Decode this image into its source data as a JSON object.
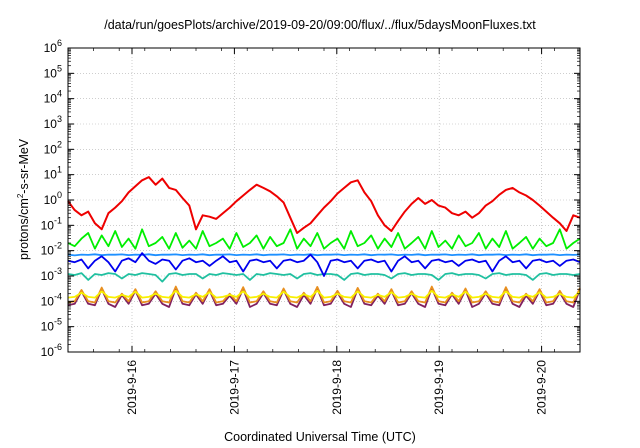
{
  "chart_data": {
    "type": "line",
    "title": "/data/run/goesPlots/archive/2019-09-20/09:00/flux/../flux/5daysMoonFluxes.txt",
    "xlabel": "Coordinated Universal Time (UTC)",
    "ylabel_parts": [
      "protons/cm",
      "2",
      "-s-sr-MeV"
    ],
    "yscale": "log",
    "ylim_exp": [
      -6,
      6
    ],
    "ytick_exponents": [
      -6,
      -5,
      -4,
      -3,
      -2,
      -1,
      0,
      1,
      2,
      3,
      4,
      5,
      6
    ],
    "xlim_days": [
      "2019-09-15 09:00",
      "2019-09-20 09:00"
    ],
    "xticks": [
      "2019-9-16",
      "2019-9-17",
      "2019-9-18",
      "2019-9-19",
      "2019-9-20"
    ],
    "grid": true,
    "colors": {
      "red": "#ee0000",
      "green": "#00ee00",
      "blue": "#0000ee",
      "dodger": "#1e90ff",
      "teal": "#20c0a0",
      "yellow": "#f8f000",
      "orange": "#e89020",
      "purple": "#802060"
    },
    "series": [
      {
        "color": "red",
        "values": [
          0.9,
          0.4,
          0.25,
          0.35,
          0.12,
          0.07,
          0.3,
          0.5,
          0.9,
          2.0,
          3.5,
          6,
          8,
          4,
          7,
          3,
          2.5,
          1.2,
          0.6,
          0.07,
          0.25,
          0.22,
          0.18,
          0.3,
          0.5,
          0.9,
          1.5,
          2.5,
          4,
          3,
          2.2,
          1.4,
          0.8,
          0.2,
          0.05,
          0.08,
          0.12,
          0.25,
          0.5,
          0.9,
          1.8,
          3,
          5,
          6,
          2,
          0.9,
          0.25,
          0.1,
          0.06,
          0.15,
          0.35,
          0.7,
          1.2,
          0.7,
          1.0,
          0.6,
          0.5,
          0.3,
          0.25,
          0.35,
          0.2,
          0.3,
          0.6,
          0.9,
          1.6,
          2.5,
          3,
          2.0,
          1.5,
          1.0,
          0.6,
          0.35,
          0.2,
          0.12,
          0.06,
          0.25,
          0.2
        ],
        "min": 0.04,
        "max": 10
      },
      {
        "color": "green",
        "values": [
          0.02,
          0.015,
          0.03,
          0.05,
          0.012,
          0.04,
          0.015,
          0.06,
          0.014,
          0.03,
          0.012,
          0.07,
          0.015,
          0.02,
          0.035,
          0.012,
          0.05,
          0.013,
          0.025,
          0.012,
          0.06,
          0.015,
          0.02,
          0.03,
          0.012,
          0.05,
          0.014,
          0.02,
          0.04,
          0.012,
          0.035,
          0.015,
          0.02,
          0.07,
          0.012,
          0.03,
          0.015,
          0.05,
          0.012,
          0.02,
          0.03,
          0.012,
          0.06,
          0.015,
          0.02,
          0.04,
          0.012,
          0.03,
          0.014,
          0.05,
          0.012,
          0.02,
          0.035,
          0.012,
          0.06,
          0.014,
          0.025,
          0.012,
          0.04,
          0.015,
          0.02,
          0.05,
          0.012,
          0.03,
          0.014,
          0.06,
          0.012,
          0.02,
          0.035,
          0.012,
          0.03,
          0.015,
          0.02,
          0.07,
          0.012,
          0.02,
          0.03
        ],
        "min": 0.011,
        "max": 0.08
      },
      {
        "color": "blue",
        "values": [
          0.004,
          0.0035,
          0.0045,
          0.002,
          0.004,
          0.006,
          0.0035,
          0.0015,
          0.004,
          0.005,
          0.0035,
          0.008,
          0.004,
          0.003,
          0.0045,
          0.004,
          0.0018,
          0.004,
          0.005,
          0.0035,
          0.004,
          0.0025,
          0.004,
          0.006,
          0.0035,
          0.004,
          0.0015,
          0.004,
          0.0045,
          0.0035,
          0.004,
          0.002,
          0.004,
          0.0045,
          0.0035,
          0.004,
          0.007,
          0.0035,
          0.001,
          0.004,
          0.0045,
          0.0035,
          0.004,
          0.002,
          0.004,
          0.0045,
          0.0035,
          0.004,
          0.0015,
          0.004,
          0.006,
          0.0035,
          0.004,
          0.002,
          0.004,
          0.0045,
          0.0035,
          0.004,
          0.0025,
          0.004,
          0.0045,
          0.0035,
          0.004,
          0.0015,
          0.004,
          0.006,
          0.0035,
          0.004,
          0.002,
          0.004,
          0.0045,
          0.0035,
          0.004,
          0.0025,
          0.004,
          0.0045,
          0.0035
        ],
        "min": 0.0009,
        "max": 0.009
      },
      {
        "color": "dodger",
        "values": [
          0.007,
          0.0065,
          0.007,
          0.0068,
          0.0072,
          0.0066,
          0.007,
          0.0069,
          0.0071,
          0.0067,
          0.007,
          0.0068,
          0.0072,
          0.0066,
          0.007,
          0.0069,
          0.0071,
          0.0067,
          0.007,
          0.0068,
          0.0072,
          0.0066,
          0.007,
          0.0069,
          0.0071,
          0.0067,
          0.007,
          0.0068,
          0.0072,
          0.0066,
          0.007,
          0.0069,
          0.0071,
          0.0067,
          0.007,
          0.0068,
          0.0072,
          0.0066,
          0.007,
          0.0069,
          0.0071,
          0.0067,
          0.007,
          0.0068,
          0.0072,
          0.0066,
          0.007,
          0.0069,
          0.0071,
          0.0067,
          0.007,
          0.0068,
          0.0072,
          0.0066,
          0.007,
          0.0069,
          0.0071,
          0.0067,
          0.007,
          0.0068,
          0.0072,
          0.0066,
          0.007,
          0.0069,
          0.0071,
          0.0067,
          0.007,
          0.0068,
          0.0072,
          0.0066,
          0.007,
          0.0069,
          0.0071,
          0.0067,
          0.007,
          0.0068,
          0.007
        ],
        "min": 0.006,
        "max": 0.008
      },
      {
        "color": "teal",
        "values": [
          0.0012,
          0.0011,
          0.0013,
          0.0007,
          0.0012,
          0.0011,
          0.0013,
          0.0012,
          0.0008,
          0.0012,
          0.0011,
          0.0013,
          0.0012,
          0.0011,
          0.0006,
          0.0012,
          0.0013,
          0.0011,
          0.0012,
          0.0012,
          0.0008,
          0.0012,
          0.0011,
          0.0013,
          0.0012,
          0.0011,
          0.0012,
          0.0007,
          0.0012,
          0.0011,
          0.0013,
          0.0012,
          0.0011,
          0.0012,
          0.0008,
          0.0012,
          0.0013,
          0.0011,
          0.0012,
          0.0012,
          0.0011,
          0.0007,
          0.0012,
          0.0013,
          0.0011,
          0.0012,
          0.0012,
          0.0011,
          0.0008,
          0.0012,
          0.0013,
          0.0011,
          0.0012,
          0.0012,
          0.0011,
          0.0007,
          0.0012,
          0.0013,
          0.0011,
          0.0012,
          0.0012,
          0.0011,
          0.0008,
          0.0012,
          0.0013,
          0.0011,
          0.0012,
          0.0012,
          0.0011,
          0.0007,
          0.0012,
          0.0013,
          0.0011,
          0.0012,
          0.0012,
          0.0011,
          0.0012
        ],
        "min": 0.0006,
        "max": 0.0014
      },
      {
        "color": "yellow",
        "values": [
          0.00014,
          0.00015,
          0.00022,
          0.00015,
          0.00014,
          0.00025,
          0.00015,
          0.00014,
          0.00018,
          0.00015,
          0.00024,
          0.00014,
          0.00015,
          0.0002,
          0.00015,
          0.00014,
          0.00026,
          0.00015,
          0.00014,
          0.00019,
          0.00015,
          0.00023,
          0.00014,
          0.00015,
          0.00018,
          0.00015,
          0.00025,
          0.00014,
          0.00015,
          0.0002,
          0.00015,
          0.00014,
          0.00024,
          0.00015,
          0.00014,
          0.00019,
          0.00015,
          0.00026,
          0.00014,
          0.00015,
          0.0002,
          0.00015,
          0.00014,
          0.00025,
          0.00015,
          0.00014,
          0.00018,
          0.00015,
          0.00023,
          0.00014,
          0.00015,
          0.0002,
          0.00015,
          0.00014,
          0.00026,
          0.00015,
          0.00014,
          0.00019,
          0.00015,
          0.00024,
          0.00014,
          0.00015,
          0.0002,
          0.00015,
          0.00014,
          0.00025,
          0.00015,
          0.00014,
          0.00018,
          0.00015,
          0.00023,
          0.00014,
          0.00015,
          0.0002,
          0.00015,
          0.00014,
          0.00024
        ],
        "min": 0.00013,
        "max": 0.00027
      },
      {
        "color": "orange",
        "values": [
          9e-05,
          0.0001,
          0.00028,
          0.0001,
          9e-05,
          0.00035,
          0.0001,
          9e-05,
          0.0002,
          0.0001,
          0.0003,
          9e-05,
          0.0001,
          0.00025,
          0.0001,
          9e-05,
          0.00038,
          0.0001,
          9e-05,
          0.00022,
          0.0001,
          0.0003,
          9e-05,
          0.0001,
          0.0002,
          0.0001,
          0.00036,
          9e-05,
          0.0001,
          0.00025,
          0.0001,
          9e-05,
          0.00032,
          0.0001,
          9e-05,
          0.00022,
          0.0001,
          0.00037,
          9e-05,
          0.0001,
          0.00026,
          0.0001,
          9e-05,
          0.00034,
          0.0001,
          9e-05,
          0.0002,
          0.0001,
          0.0003,
          9e-05,
          0.0001,
          0.00025,
          0.0001,
          9e-05,
          0.00038,
          0.0001,
          9e-05,
          0.00022,
          0.0001,
          0.00032,
          9e-05,
          0.0001,
          0.00025,
          0.0001,
          9e-05,
          0.00036,
          0.0001,
          9e-05,
          0.0002,
          0.0001,
          0.0003,
          9e-05,
          0.0001,
          0.00026,
          0.0001,
          9e-05,
          0.00034
        ],
        "min": 8e-05,
        "max": 0.0004
      },
      {
        "color": "purple",
        "values": [
          7e-05,
          8e-05,
          0.00025,
          8e-05,
          7e-05,
          0.0003,
          8e-05,
          6e-05,
          0.00018,
          8e-05,
          0.00026,
          7e-05,
          8e-05,
          0.0002,
          8e-05,
          6e-05,
          0.00032,
          8e-05,
          7e-05,
          0.00019,
          8e-05,
          0.00027,
          7e-05,
          8e-05,
          0.00017,
          8e-05,
          0.00031,
          6e-05,
          8e-05,
          0.00021,
          8e-05,
          7e-05,
          0.00028,
          8e-05,
          6e-05,
          0.00018,
          8e-05,
          0.00032,
          7e-05,
          8e-05,
          0.00022,
          8e-05,
          6e-05,
          0.0003,
          8e-05,
          7e-05,
          0.00017,
          8e-05,
          0.00026,
          7e-05,
          8e-05,
          0.00021,
          8e-05,
          6e-05,
          0.00033,
          8e-05,
          7e-05,
          0.00019,
          8e-05,
          0.00028,
          6e-05,
          8e-05,
          0.00021,
          8e-05,
          7e-05,
          0.00031,
          8e-05,
          6e-05,
          0.00017,
          8e-05,
          0.00026,
          7e-05,
          8e-05,
          0.00022,
          8e-05,
          6e-05,
          0.0003
        ],
        "min": 5e-05,
        "max": 0.00035
      }
    ]
  }
}
